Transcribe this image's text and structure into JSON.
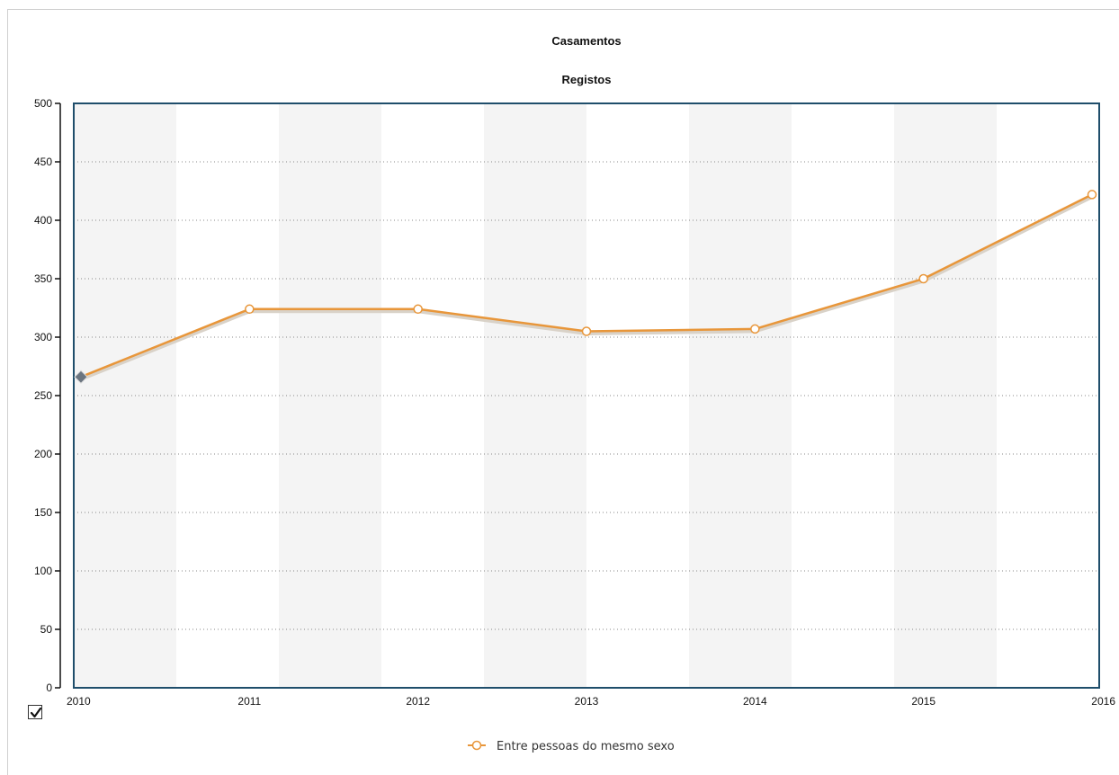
{
  "chart_data": {
    "type": "line",
    "title": "Casamentos",
    "subtitle": "Registos",
    "x": [
      "2010",
      "2011",
      "2012",
      "2013",
      "2014",
      "2015",
      "2016"
    ],
    "series": [
      {
        "name": "Entre pessoas do mesmo sexo",
        "values": [
          266,
          324,
          324,
          305,
          307,
          350,
          422
        ],
        "color": "#e8963a"
      }
    ],
    "ylim": [
      0,
      500
    ],
    "y_ticks": [
      0,
      50,
      100,
      150,
      200,
      250,
      300,
      350,
      400,
      450,
      500
    ],
    "grid": true,
    "legend": "bottom-center",
    "colors": {
      "plot_border": "#1f4e6b",
      "band": "#f4f4f4",
      "highlight_marker": "#6b7580"
    }
  },
  "controls": {
    "checkbox_checked": true
  }
}
